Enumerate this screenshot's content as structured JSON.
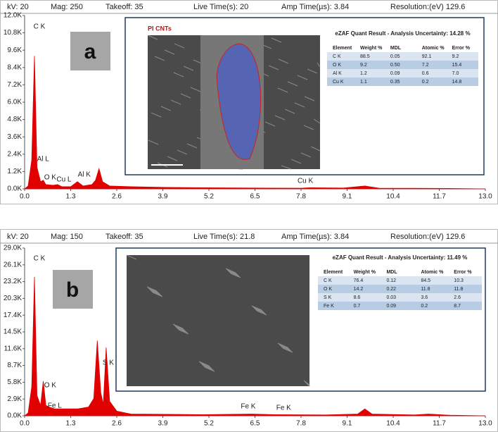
{
  "chart_data": [
    {
      "type": "area",
      "panel_label": "a",
      "header": [
        "kV: 20",
        "Mag: 250",
        "Takeoff: 35",
        "Live Time(s): 20",
        "Amp Time(µs): 3.84",
        "Resolution:(eV) 129.6"
      ],
      "color": "#e00000",
      "x": [
        0.0,
        0.1,
        0.2,
        0.277,
        0.35,
        0.45,
        0.525,
        0.6,
        0.8,
        0.93,
        1.05,
        1.3,
        1.49,
        1.65,
        1.9,
        2.0,
        2.1,
        2.2,
        2.4,
        3.0,
        4.0,
        5.0,
        6.5,
        7.8,
        8.05,
        9.0,
        9.6,
        10.0,
        11.0,
        12.0,
        13.0
      ],
      "values": [
        0,
        200,
        2000,
        9200,
        1500,
        500,
        600,
        300,
        250,
        300,
        150,
        150,
        500,
        200,
        300,
        600,
        1400,
        500,
        200,
        150,
        100,
        80,
        60,
        50,
        80,
        60,
        200,
        50,
        40,
        30,
        0
      ],
      "xlim": [
        0,
        13
      ],
      "xticks": [
        {
          "value": 0,
          "label": "0.0"
        },
        1.3,
        2.6,
        3.9,
        5.2,
        6.5,
        7.8,
        9.1,
        10.4,
        11.7,
        {
          "value": 13,
          "label": "13.0"
        }
      ],
      "ylim": [
        0,
        12000
      ],
      "yticks": [
        {
          "value": 0,
          "label": "0.0K"
        },
        {
          "value": 1200,
          "label": "1.2K"
        },
        {
          "value": 2400,
          "label": "2.4K"
        },
        {
          "value": 3600,
          "label": "3.6K"
        },
        {
          "value": 4800,
          "label": "4.8K"
        },
        {
          "value": 6000,
          "label": "6.0K"
        },
        {
          "value": 7200,
          "label": "7.2K"
        },
        {
          "value": 8400,
          "label": "8.4K"
        },
        {
          "value": 9600,
          "label": "9.6K"
        },
        {
          "value": 10800,
          "label": "10.8K"
        },
        {
          "value": 12000,
          "label": "12.0K"
        }
      ],
      "annotations": [
        "C K",
        "Al L",
        "O K",
        "Cu L",
        "Al K",
        "Cu K"
      ],
      "image_caption": "PI CNTs",
      "quant_table": {
        "title": "eZAF Quant Result - Analysis Uncertainty: 14.28 %",
        "columns": [
          "Element",
          "Weight %",
          "MDL",
          "Atomic %",
          "Error %"
        ],
        "rows": [
          [
            "C K",
            "88.5",
            "0.05",
            "92.1",
            "9.2"
          ],
          [
            "O K",
            "9.2",
            "0.50",
            "7.2",
            "15.4"
          ],
          [
            "Al K",
            "1.2",
            "0.09",
            "0.6",
            "7.0"
          ],
          [
            "Cu K",
            "1.1",
            "0.35",
            "0.2",
            "14.8"
          ]
        ]
      }
    },
    {
      "type": "area",
      "panel_label": "b",
      "header": [
        "kV: 20",
        "Mag: 150",
        "Takeoff: 35",
        "Live Time(s): 21.8",
        "Amp Time(µs): 3.84",
        "Resolution:(eV) 129.6"
      ],
      "color": "#e00000",
      "x": [
        0.0,
        0.1,
        0.2,
        0.277,
        0.35,
        0.45,
        0.525,
        0.6,
        0.7,
        0.85,
        1.0,
        1.5,
        1.8,
        1.95,
        2.05,
        2.15,
        2.22,
        2.3,
        2.4,
        2.6,
        3.0,
        4.0,
        5.0,
        6.4,
        7.06,
        8.5,
        9.4,
        9.6,
        9.8,
        11.0,
        11.4,
        12.0,
        13.0
      ],
      "values": [
        0,
        500,
        5000,
        24000,
        3500,
        1800,
        6000,
        1800,
        1500,
        1200,
        1200,
        1200,
        1500,
        3000,
        13000,
        4000,
        2000,
        11800,
        2500,
        800,
        300,
        250,
        200,
        300,
        200,
        150,
        300,
        1200,
        300,
        150,
        300,
        100,
        0
      ],
      "xlim": [
        0,
        13
      ],
      "xticks": [
        {
          "value": 0,
          "label": "0.0"
        },
        1.3,
        2.6,
        3.9,
        5.2,
        6.5,
        7.8,
        9.1,
        10.4,
        11.7,
        {
          "value": 13,
          "label": "13.0"
        }
      ],
      "ylim": [
        0,
        29000
      ],
      "yticks": [
        {
          "value": 0,
          "label": "0.0K"
        },
        {
          "value": 2900,
          "label": "2.9K"
        },
        {
          "value": 5800,
          "label": "5.8K"
        },
        {
          "value": 8700,
          "label": "8.7K"
        },
        {
          "value": 11600,
          "label": "11.6K"
        },
        {
          "value": 14500,
          "label": "14.5K"
        },
        {
          "value": 17400,
          "label": "17.4K"
        },
        {
          "value": 20300,
          "label": "20.3K"
        },
        {
          "value": 23200,
          "label": "23.2K"
        },
        {
          "value": 26100,
          "label": "26.1K"
        },
        {
          "value": 29000,
          "label": "29.0K"
        }
      ],
      "annotations": [
        "C K",
        "O K",
        "Fe L",
        "S K",
        "Fe K",
        "Fe K"
      ],
      "quant_table": {
        "title": "eZAF Quant Result - Analysis Uncertainty: 11.49 %",
        "columns": [
          "Element",
          "Weight %",
          "MDL",
          "Atomic %",
          "Error %"
        ],
        "rows": [
          [
            "C K",
            "76.4",
            "0.12",
            "84.5",
            "10.3"
          ],
          [
            "O K",
            "14.2",
            "0.22",
            "11.8",
            "11.8"
          ],
          [
            "S K",
            "8.6",
            "0.03",
            "3.6",
            "2.6"
          ],
          [
            "Fe K",
            "0.7",
            "0.09",
            "0.2",
            "8.7"
          ]
        ]
      }
    }
  ]
}
